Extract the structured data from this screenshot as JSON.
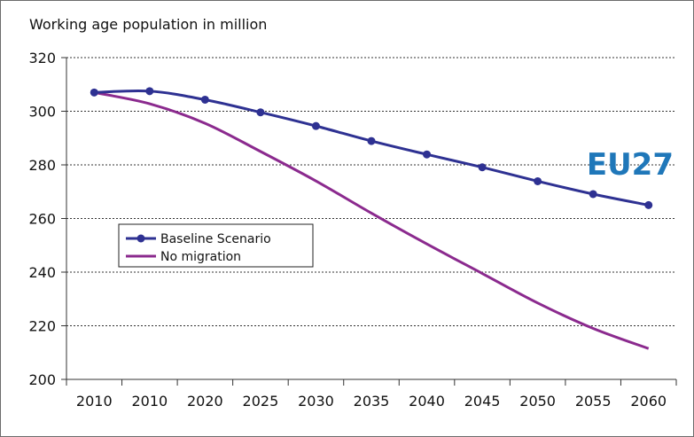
{
  "chart_data": {
    "type": "line",
    "title": "Working age population in million",
    "annotation": "EU27",
    "annotation_color": "#1f77b9",
    "xlabel": "",
    "ylabel": "",
    "categories": [
      "2010",
      "2010",
      "2020",
      "2025",
      "2030",
      "2035",
      "2040",
      "2045",
      "2050",
      "2055",
      "2060"
    ],
    "ylim": [
      200,
      320
    ],
    "yticks": [
      200,
      220,
      240,
      260,
      280,
      300,
      320
    ],
    "grid": "horizontal-dotted",
    "legend_position": "left",
    "series": [
      {
        "name": "Baseline Scenario",
        "color": "#2e3192",
        "markers": true,
        "values": [
          307,
          307.5,
          304.3,
          299.6,
          294.5,
          288.9,
          283.9,
          279.1,
          273.9,
          269.1,
          265
        ]
      },
      {
        "name": "No migration",
        "color": "#8b2a8e",
        "markers": false,
        "values": [
          307,
          302.8,
          295.5,
          285,
          274,
          262,
          250.5,
          239.5,
          228.5,
          219,
          211.5
        ]
      }
    ]
  }
}
